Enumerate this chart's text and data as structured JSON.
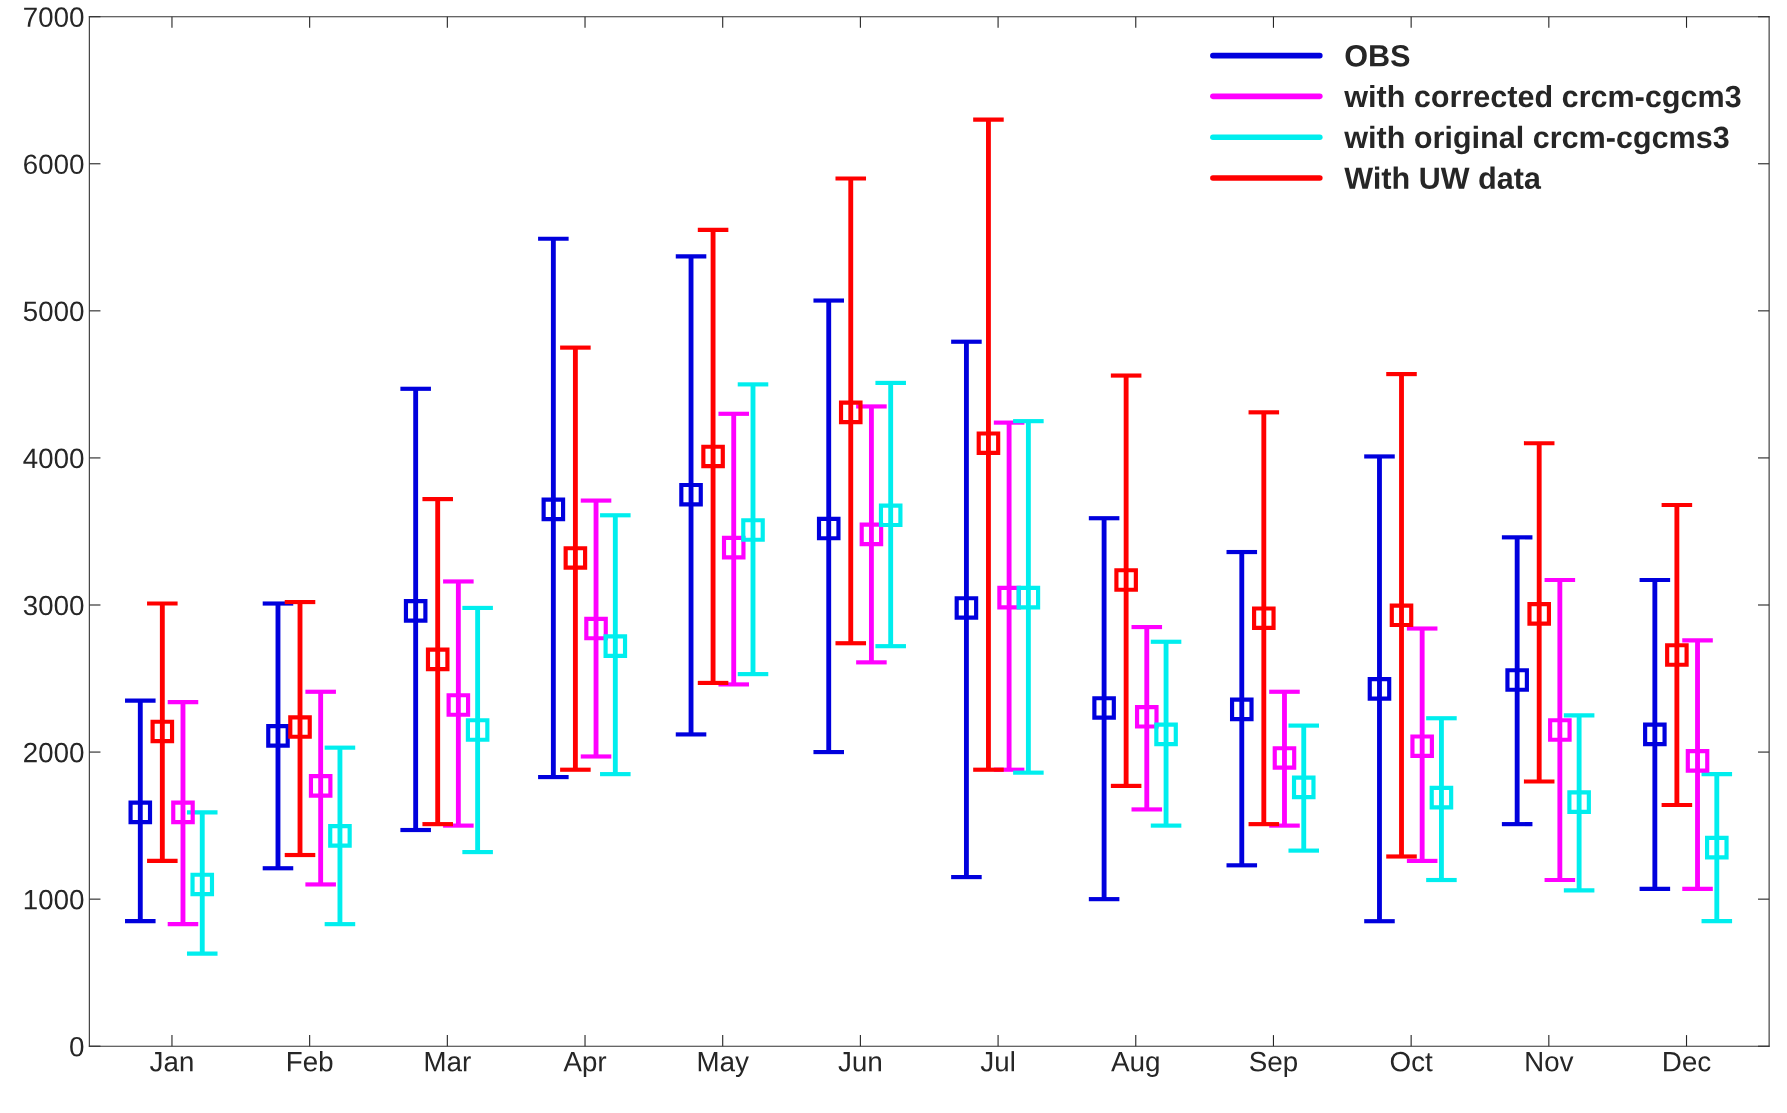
{
  "chart_data": {
    "type": "scatter",
    "categories": [
      "Jan",
      "Feb",
      "Mar",
      "Apr",
      "May",
      "Jun",
      "Jul",
      "Aug",
      "Sep",
      "Oct",
      "Nov",
      "Dec"
    ],
    "series": [
      {
        "name": "OBS",
        "color": "#0000dd",
        "values": [
          1590,
          2110,
          2960,
          3650,
          3750,
          3520,
          2980,
          2300,
          2290,
          2430,
          2490,
          2120
        ],
        "errors": [
          [
            850,
            2350
          ],
          [
            1210,
            3010
          ],
          [
            1470,
            4470
          ],
          [
            1830,
            5490
          ],
          [
            2120,
            5370
          ],
          [
            2000,
            5070
          ],
          [
            1150,
            4790
          ],
          [
            1000,
            3590
          ],
          [
            1230,
            3360
          ],
          [
            850,
            4010
          ],
          [
            1510,
            3460
          ],
          [
            1070,
            3170
          ]
        ]
      },
      {
        "name": "with corrected crcm-cgcm3",
        "color": "#ff00ff",
        "values": [
          1590,
          1770,
          2320,
          2840,
          3390,
          3480,
          3050,
          2240,
          1960,
          2040,
          2150,
          1940
        ],
        "errors": [
          [
            830,
            2340
          ],
          [
            1100,
            2410
          ],
          [
            1500,
            3160
          ],
          [
            1970,
            3710
          ],
          [
            2460,
            4300
          ],
          [
            2610,
            4350
          ],
          [
            1880,
            4240
          ],
          [
            1610,
            2850
          ],
          [
            1500,
            2410
          ],
          [
            1260,
            2840
          ],
          [
            1130,
            3170
          ],
          [
            1070,
            2760
          ]
        ]
      },
      {
        "name": "with original crcm-cgcms3",
        "color": "#00eeee",
        "values": [
          1100,
          1430,
          2150,
          2720,
          3510,
          3610,
          3050,
          2120,
          1760,
          1690,
          1660,
          1350
        ],
        "errors": [
          [
            630,
            1590
          ],
          [
            830,
            2030
          ],
          [
            1320,
            2980
          ],
          [
            1850,
            3610
          ],
          [
            2530,
            4500
          ],
          [
            2720,
            4510
          ],
          [
            1860,
            4250
          ],
          [
            1500,
            2750
          ],
          [
            1330,
            2180
          ],
          [
            1130,
            2230
          ],
          [
            1060,
            2250
          ],
          [
            850,
            1850
          ]
        ]
      },
      {
        "name": "With UW data",
        "color": "#ff0000",
        "values": [
          2140,
          2170,
          2630,
          3320,
          4010,
          4310,
          4100,
          3170,
          2910,
          2930,
          2940,
          2660
        ],
        "errors": [
          [
            1260,
            3010
          ],
          [
            1300,
            3020
          ],
          [
            1510,
            3720
          ],
          [
            1880,
            4750
          ],
          [
            2470,
            5550
          ],
          [
            2740,
            5900
          ],
          [
            1880,
            6300
          ],
          [
            1770,
            4560
          ],
          [
            1510,
            4310
          ],
          [
            1290,
            4570
          ],
          [
            1800,
            4100
          ],
          [
            1640,
            3680
          ]
        ]
      }
    ],
    "ylim": [
      0,
      7000
    ],
    "yticks": [
      0,
      1000,
      2000,
      3000,
      4000,
      5000,
      6000,
      7000
    ],
    "marker": "square",
    "grid": false,
    "legend": "top right"
  }
}
